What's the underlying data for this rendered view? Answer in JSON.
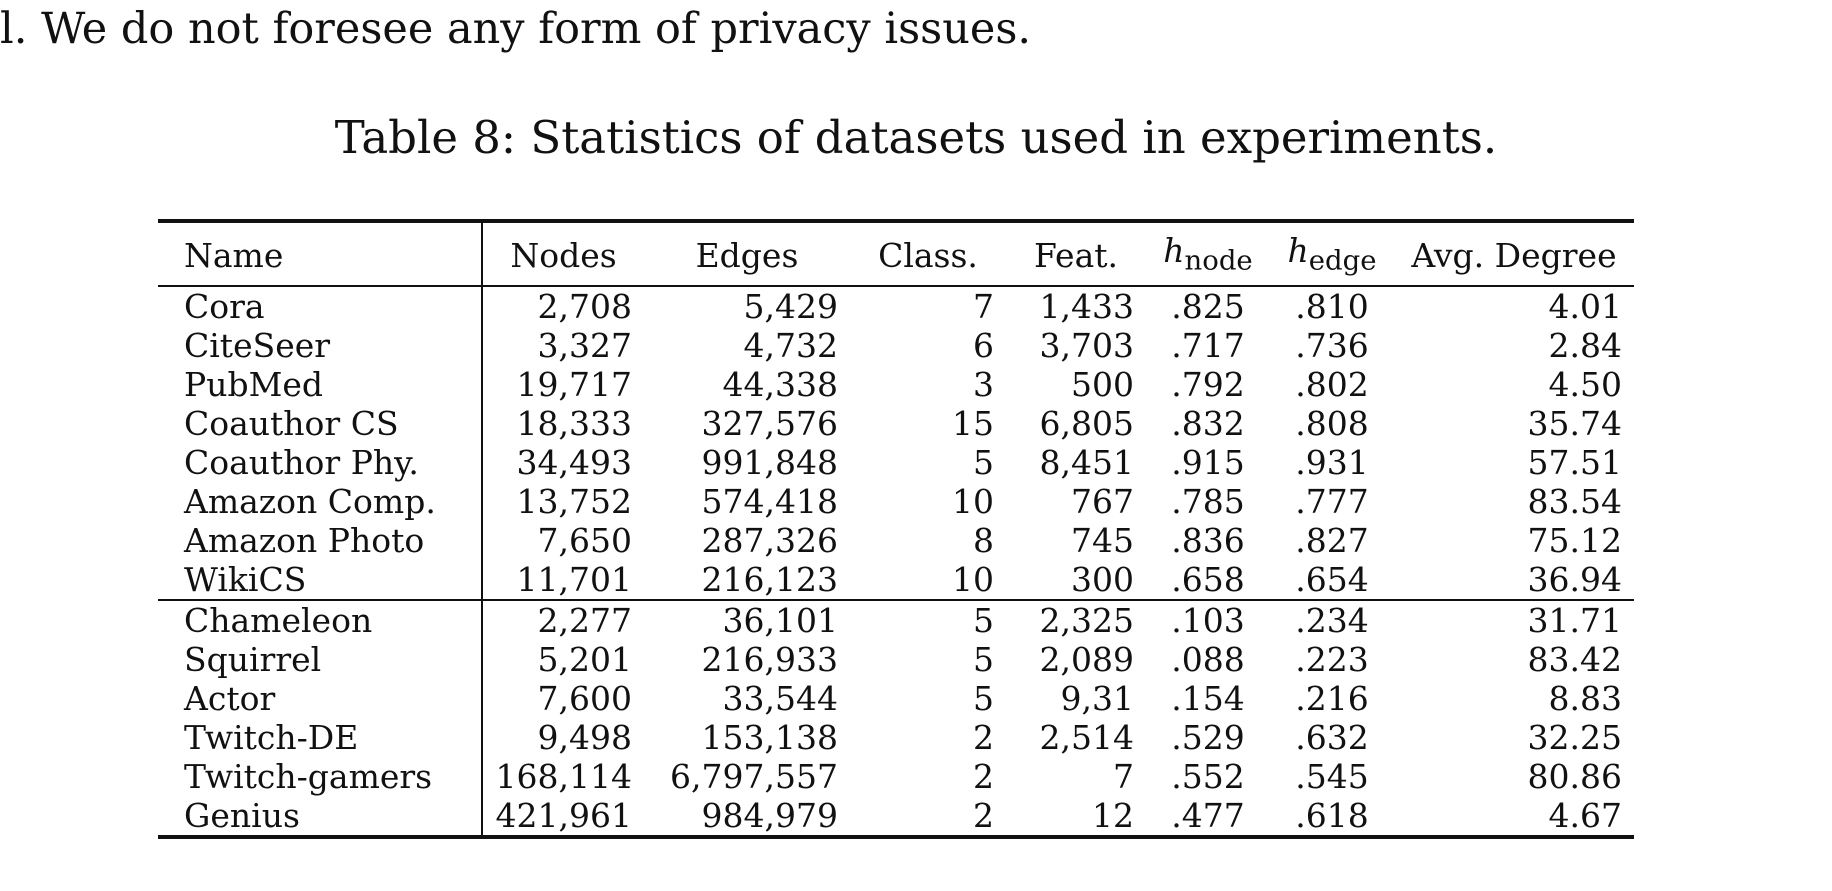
{
  "previous_text": "l. We do not foresee any form of privacy issues.",
  "caption": "Table 8: Statistics of datasets used in experiments.",
  "table": {
    "headers": {
      "name": "Name",
      "nodes": "Nodes",
      "edges": "Edges",
      "classes": "Class.",
      "features": "Feat.",
      "h_node_base": "h",
      "h_node_sub": "node",
      "h_edge_base": "h",
      "h_edge_sub": "edge",
      "avg_degree": "Avg. Degree"
    },
    "groups": [
      {
        "rows": [
          {
            "name": "Cora",
            "nodes": "2,708",
            "edges": "5,429",
            "classes": "7",
            "features": "1,433",
            "h_node": ".825",
            "h_edge": ".810",
            "avg_degree": "4.01"
          },
          {
            "name": "CiteSeer",
            "nodes": "3,327",
            "edges": "4,732",
            "classes": "6",
            "features": "3,703",
            "h_node": ".717",
            "h_edge": ".736",
            "avg_degree": "2.84"
          },
          {
            "name": "PubMed",
            "nodes": "19,717",
            "edges": "44,338",
            "classes": "3",
            "features": "500",
            "h_node": ".792",
            "h_edge": ".802",
            "avg_degree": "4.50"
          },
          {
            "name": "Coauthor CS",
            "nodes": "18,333",
            "edges": "327,576",
            "classes": "15",
            "features": "6,805",
            "h_node": ".832",
            "h_edge": ".808",
            "avg_degree": "35.74"
          },
          {
            "name": "Coauthor Phy.",
            "nodes": "34,493",
            "edges": "991,848",
            "classes": "5",
            "features": "8,451",
            "h_node": ".915",
            "h_edge": ".931",
            "avg_degree": "57.51"
          },
          {
            "name": "Amazon Comp.",
            "nodes": "13,752",
            "edges": "574,418",
            "classes": "10",
            "features": "767",
            "h_node": ".785",
            "h_edge": ".777",
            "avg_degree": "83.54"
          },
          {
            "name": "Amazon Photo",
            "nodes": "7,650",
            "edges": "287,326",
            "classes": "8",
            "features": "745",
            "h_node": ".836",
            "h_edge": ".827",
            "avg_degree": "75.12"
          },
          {
            "name": "WikiCS",
            "nodes": "11,701",
            "edges": "216,123",
            "classes": "10",
            "features": "300",
            "h_node": ".658",
            "h_edge": ".654",
            "avg_degree": "36.94"
          }
        ]
      },
      {
        "rows": [
          {
            "name": "Chameleon",
            "nodes": "2,277",
            "edges": "36,101",
            "classes": "5",
            "features": "2,325",
            "h_node": ".103",
            "h_edge": ".234",
            "avg_degree": "31.71"
          },
          {
            "name": "Squirrel",
            "nodes": "5,201",
            "edges": "216,933",
            "classes": "5",
            "features": "2,089",
            "h_node": ".088",
            "h_edge": ".223",
            "avg_degree": "83.42"
          },
          {
            "name": "Actor",
            "nodes": "7,600",
            "edges": "33,544",
            "classes": "5",
            "features": "9,31",
            "h_node": ".154",
            "h_edge": ".216",
            "avg_degree": "8.83"
          },
          {
            "name": "Twitch-DE",
            "nodes": "9,498",
            "edges": "153,138",
            "classes": "2",
            "features": "2,514",
            "h_node": ".529",
            "h_edge": ".632",
            "avg_degree": "32.25"
          },
          {
            "name": "Twitch-gamers",
            "nodes": "168,114",
            "edges": "6,797,557",
            "edges_bold": true,
            "classes": "2",
            "features": "7",
            "h_node": ".552",
            "h_edge": ".545",
            "avg_degree": "80.86"
          },
          {
            "name": "Genius",
            "nodes": "421,961",
            "nodes_bold": true,
            "edges": "984,979",
            "classes": "2",
            "features": "12",
            "h_node": ".477",
            "h_edge": ".618",
            "avg_degree": "4.67"
          }
        ]
      }
    ]
  }
}
